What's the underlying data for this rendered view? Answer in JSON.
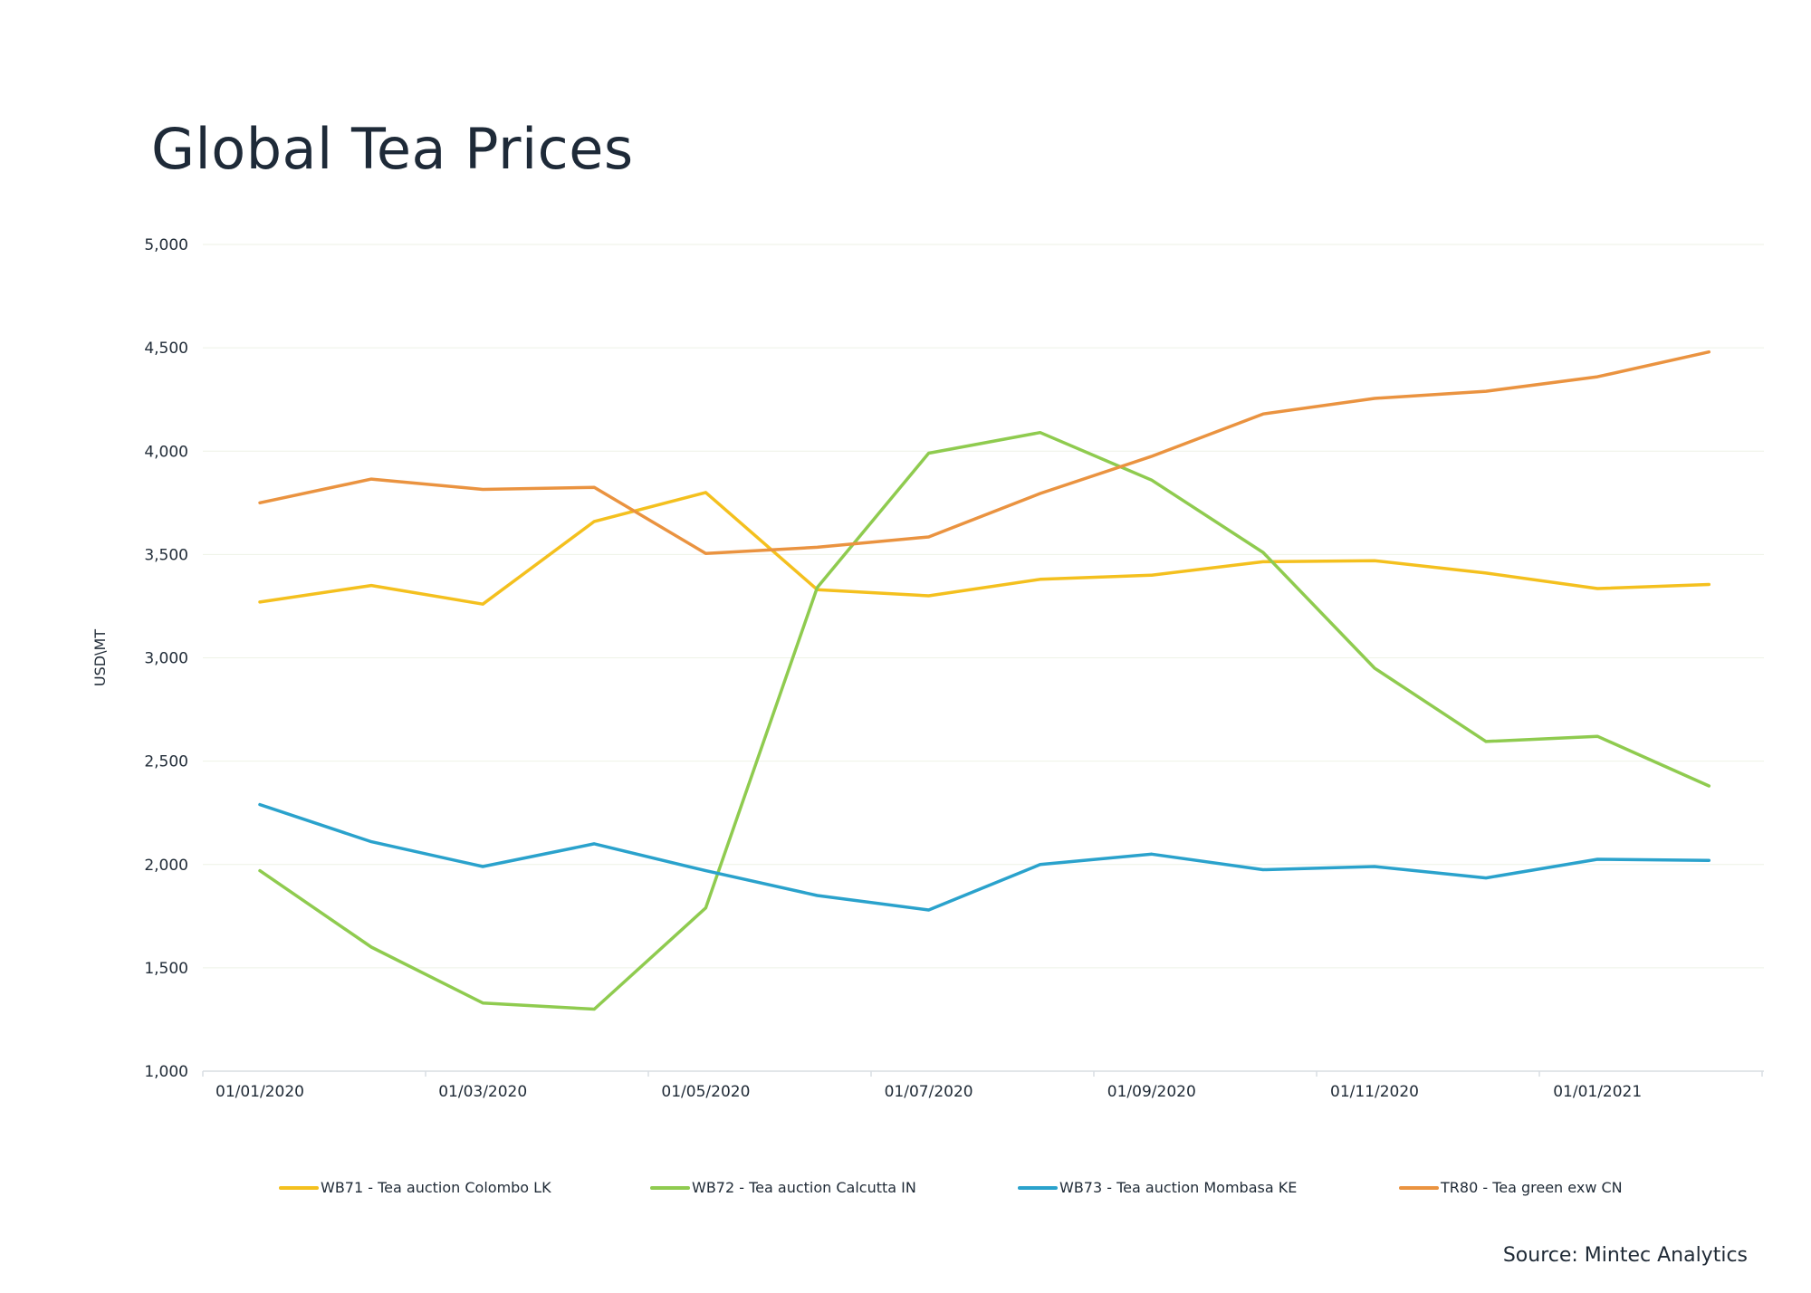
{
  "chart_data": {
    "type": "line",
    "title": "Global Tea Prices",
    "ylabel": "USD\\MT",
    "xlabel": "",
    "ylim": [
      1000,
      5000
    ],
    "yticks": [
      "1,000",
      "1,500",
      "2,000",
      "2,500",
      "3,000",
      "3,500",
      "4,000",
      "4,500",
      "5,000"
    ],
    "ytick_values": [
      1000,
      1500,
      2000,
      2500,
      3000,
      3500,
      4000,
      4500,
      5000
    ],
    "x": [
      "01/01/2020",
      "01/02/2020",
      "01/03/2020",
      "01/04/2020",
      "01/05/2020",
      "01/06/2020",
      "01/07/2020",
      "01/08/2020",
      "01/09/2020",
      "01/10/2020",
      "01/11/2020",
      "01/12/2020",
      "01/01/2021",
      "01/02/2021"
    ],
    "xtick_labels": [
      "01/01/2020",
      "01/03/2020",
      "01/05/2020",
      "01/07/2020",
      "01/09/2020",
      "01/11/2020",
      "01/01/2021"
    ],
    "xtick_indices": [
      0,
      2,
      4,
      6,
      8,
      10,
      12
    ],
    "grid": true,
    "legend_position": "bottom",
    "series": [
      {
        "name": "WB71 - Tea auction Colombo LK",
        "color": "#f4c01e",
        "values": [
          3270,
          3350,
          3260,
          3660,
          3800,
          3330,
          3300,
          3380,
          3400,
          3465,
          3470,
          3410,
          3335,
          3355
        ]
      },
      {
        "name": "WB72 - Tea auction Calcutta IN",
        "color": "#8fcb4f",
        "values": [
          1970,
          1600,
          1330,
          1300,
          1790,
          3340,
          3990,
          4090,
          3860,
          3510,
          2950,
          2595,
          2620,
          2380
        ]
      },
      {
        "name": "WB73 - Tea auction Mombasa KE",
        "color": "#2aa2cc",
        "values": [
          2290,
          2110,
          1990,
          2100,
          1970,
          1850,
          1780,
          2000,
          2050,
          1975,
          1990,
          1935,
          2025,
          2020
        ]
      },
      {
        "name": "TR80 - Tea green exw CN",
        "color": "#ea9340",
        "values": [
          3750,
          3865,
          3815,
          3825,
          3505,
          3535,
          3585,
          3795,
          3975,
          4180,
          4255,
          4290,
          4360,
          4480
        ]
      }
    ]
  },
  "source": "Source: Mintec Analytics"
}
